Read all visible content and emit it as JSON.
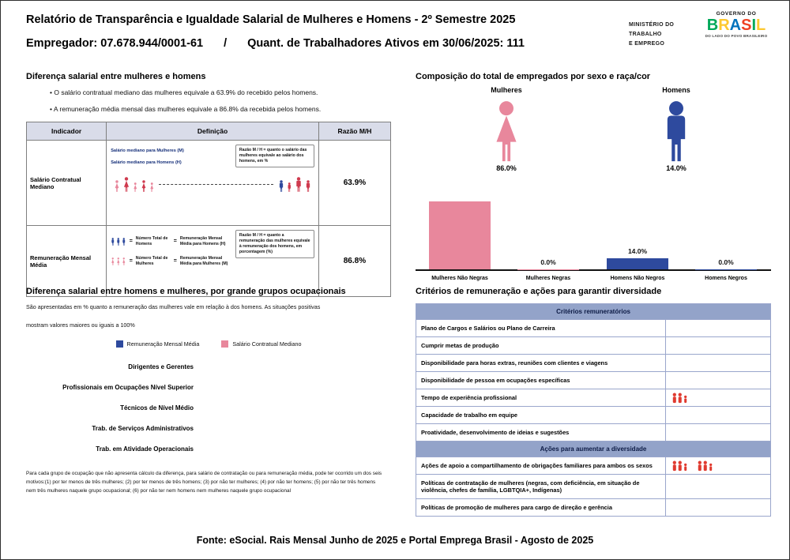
{
  "header": {
    "title": "Relatório de Transparência e Igualdade Salarial de Mulheres e Homens - 2º Semestre 2025",
    "employer": "Empregador: 07.678.944/0001-61",
    "separator": "/",
    "active_workers": "Quant. de Trabalhadores Ativos em 30/06/2025: 111",
    "ministry_lines": [
      "MINISTÉRIO DO",
      "TRABALHO",
      "E EMPREGO"
    ],
    "gov_top": "GOVERNO DO",
    "gov_logo": "BRASIL",
    "gov_logo_colors": [
      "#00a859",
      "#fdc82f",
      "#0072bc",
      "#ef4123",
      "#00a859",
      "#fdc82f"
    ],
    "gov_bottom": "DO LADO DO POVO BRASILEIRO"
  },
  "salary": {
    "heading": "Diferença salarial entre mulheres e homens",
    "bullets": [
      "O salário contratual mediano das mulheres equivale a 63.9% do recebido pelos homens.",
      "A remuneração média mensal das mulheres equivale a 86.8% da recebida pelos homens."
    ],
    "table": {
      "col_indicator": "Indicador",
      "col_definition": "Definição",
      "col_ratio": "Razão M/H",
      "row1": {
        "indicator": "Salário Contratual Mediano",
        "label_women": "Salário mediano para Mulheres (M)",
        "label_men": "Salário mediano para Homens (H)",
        "note": "Razão M / H = quanto o salário das mulheres equivale ao salário dos homens, em %",
        "ratio": "63.9%"
      },
      "row2": {
        "indicator": "Remuneração Mensal Média",
        "equals": "=",
        "men_count": "Número Total de Homens",
        "men_avg": "Remuneração Mensal Média para Homens (H)",
        "women_count": "Número Total de Mulheres",
        "women_avg": "Remuneração Mensal Média para Mulheres (M)",
        "note": "Razão M / H = quanto a remuneração das mulheres equivale à remuneração dos homens, em porcentagem (%)",
        "ratio": "86.8%"
      }
    }
  },
  "composition": {
    "heading": "Composição do total de empregados por sexo e raça/cor",
    "women_label": "Mulheres",
    "men_label": "Homens",
    "women_pct": "86.0%",
    "men_pct": "14.0%",
    "bars": [
      {
        "label": "Mulheres Não Negras",
        "value": 86.0,
        "display": "86.0%",
        "color": "#e8879c"
      },
      {
        "label": "Mulheres Negras",
        "value": 0.0,
        "display": "0.0%",
        "color": "#e8879c"
      },
      {
        "label": "Homens Não Negros",
        "value": 14.0,
        "display": "14.0%",
        "color": "#2e4a9e"
      },
      {
        "label": "Homens Negros",
        "value": 0.0,
        "display": "0.0%",
        "color": "#2e4a9e"
      }
    ]
  },
  "occupational": {
    "heading": "Diferença salarial entre homens e mulheres, por grande grupos ocupacionais",
    "description_line1": "São apresentadas em % quanto a remuneração das mulheres vale em relação à dos homens. As situações positivas",
    "description_line2": "mostram valores maiores ou iguais a 100%",
    "legend": [
      {
        "label": "Remuneração Mensal Média",
        "color": "#2e4a9e"
      },
      {
        "label": "Salário Contratual Mediano",
        "color": "#e8879c"
      }
    ],
    "groups": [
      "Dirigentes e Gerentes",
      "Profissionais em Ocupações Nível Superior",
      "Técnicos de Nível Médio",
      "Trab. de Serviços Administrativos",
      "Trab. em Atividade Operacionais"
    ],
    "footnote": "Para cada grupo de ocupação que não apresenta cálculo da diferença, para salário de contratação ou para remuneração média, pode ter ocorrido um dos seis motivos:(1) por ter menos de três mulheres; (2) por ter menos de três homens; (3) por não ter mulheres; (4) por não ter homens; (5) por não ter três homens nem três mulheres naquele grupo ocupacional; (6) por não ter nem homens nem mulheres naquele grupo ocupacional"
  },
  "criteria": {
    "heading": "Critérios de remuneração e ações para garantir diversidade",
    "remuneration_title": "Critérios remuneratórios",
    "remuneration_rows": [
      "Plano de Cargos e Salários ou Plano de Carreira",
      "Cumprir metas de produção",
      "Disponibilidade para horas extras, reuniões com clientes e viagens",
      "Disponibilidade de pessoa em ocupações específicas",
      "Tempo de experiência profissional",
      "Capacidade de trabalho em equipe",
      "Proatividade, desenvolvimento de ideias e sugestões"
    ],
    "diversity_title": "Ações para aumentar a diversidade",
    "diversity_rows": [
      "Ações de apoio a compartilhamento de obrigações familiares para ambos os sexos",
      "Políticas de contratação de mulheres (negras, com deficiência, em situação de violência, chefes de família, LGBTQIA+, Indígenas)",
      "Políticas de promoção de mulheres para cargo de direção e gerência"
    ]
  },
  "footer": "Fonte: eSocial. Rais Mensal Junho de 2025 e Portal Emprega Brasil - Agosto de 2025",
  "chart_data": [
    {
      "type": "bar",
      "title": "Composição do total de empregados por sexo e raça/cor",
      "categories": [
        "Mulheres Não Negras",
        "Mulheres Negras",
        "Homens Não Negros",
        "Homens Negros"
      ],
      "values": [
        86.0,
        0.0,
        14.0,
        0.0
      ],
      "data_labels": [
        "86.0%",
        "0.0%",
        "14.0%",
        "0.0%"
      ],
      "xlabel": "",
      "ylabel": "",
      "ylim": [
        0,
        100
      ],
      "grid": false,
      "legend_position": "none",
      "totals": {
        "Mulheres": 86.0,
        "Homens": 14.0
      }
    },
    {
      "type": "bar",
      "title": "Diferença salarial entre homens e mulheres, por grande grupos ocupacionais",
      "categories": [
        "Dirigentes e Gerentes",
        "Profissionais em Ocupações Nível Superior",
        "Técnicos de Nível Médio",
        "Trab. de Serviços Administrativos",
        "Trab. em Atividade Operacionais"
      ],
      "series": [
        {
          "name": "Remuneração Mensal Média",
          "values": [
            null,
            null,
            null,
            null,
            null
          ]
        },
        {
          "name": "Salário Contratual Mediano",
          "values": [
            null,
            null,
            null,
            null,
            null
          ]
        }
      ],
      "legend_position": "top",
      "grid": false,
      "note": "nenhuma barra exibida (sem dados para os grupos)"
    }
  ]
}
